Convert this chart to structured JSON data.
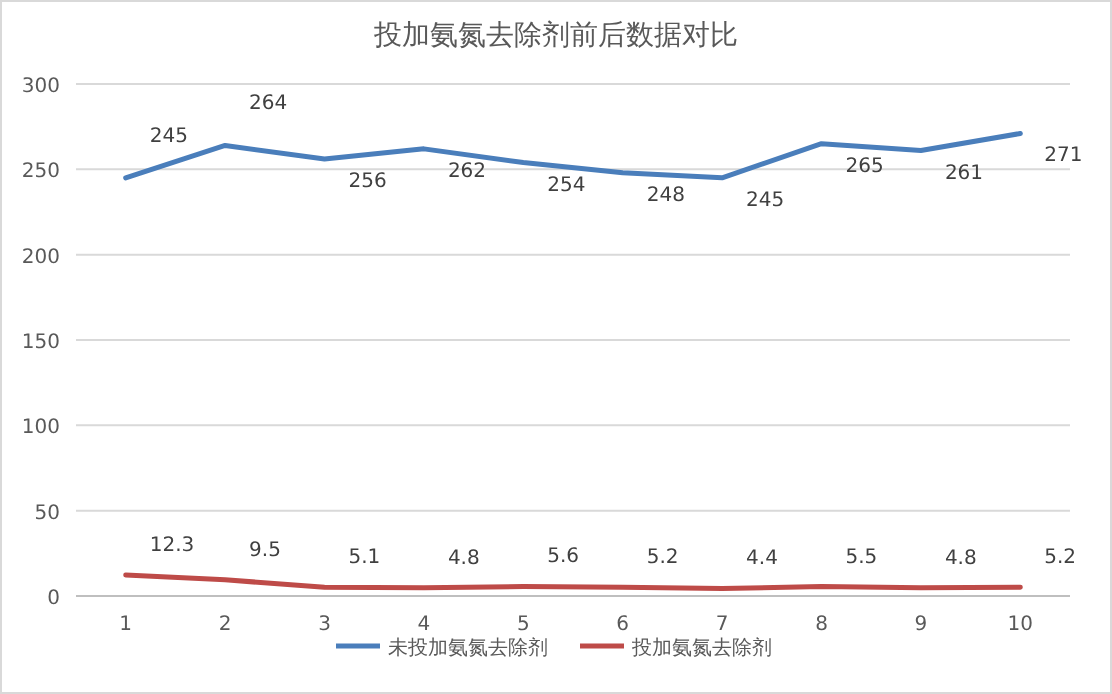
{
  "chart_data": {
    "type": "line",
    "title": "投加氨氮去除剂前后数据对比",
    "categories": [
      "1",
      "2",
      "3",
      "4",
      "5",
      "6",
      "7",
      "8",
      "9",
      "10"
    ],
    "series": [
      {
        "name": "未投加氨氮去除剂",
        "color": "#4a7ebb",
        "values": [
          245,
          264,
          256,
          262,
          254,
          248,
          245,
          265,
          261,
          271
        ]
      },
      {
        "name": "投加氨氮去除剂",
        "color": "#be4b48",
        "values": [
          12.3,
          9.5,
          5.1,
          4.8,
          5.6,
          5.2,
          4.4,
          5.5,
          4.8,
          5.2
        ]
      }
    ],
    "ylim": [
      0,
      300
    ],
    "yticks": [
      0,
      50,
      100,
      150,
      200,
      250,
      300
    ],
    "grid": "y",
    "legend": "bottom",
    "data_labels": true,
    "marker": "none",
    "line_style": "solid"
  }
}
